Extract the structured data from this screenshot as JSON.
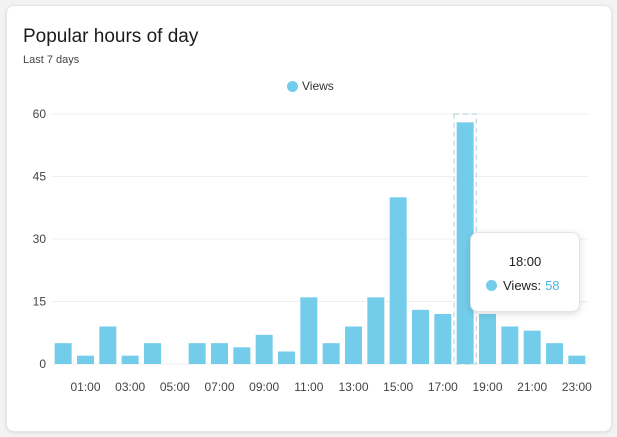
{
  "card": {
    "title": "Popular hours of day",
    "subtitle": "Last 7 days"
  },
  "tooltip": {
    "title": "18:00",
    "series_label": "Views:",
    "value": "58"
  },
  "chart_data": {
    "type": "bar",
    "categories": [
      "00:00",
      "01:00",
      "02:00",
      "03:00",
      "04:00",
      "05:00",
      "06:00",
      "07:00",
      "08:00",
      "09:00",
      "10:00",
      "11:00",
      "12:00",
      "13:00",
      "14:00",
      "15:00",
      "16:00",
      "17:00",
      "18:00",
      "19:00",
      "20:00",
      "21:00",
      "22:00",
      "23:00"
    ],
    "x_tick_labels": [
      "01:00",
      "03:00",
      "05:00",
      "07:00",
      "09:00",
      "11:00",
      "13:00",
      "15:00",
      "17:00",
      "19:00",
      "21:00",
      "23:00"
    ],
    "series": [
      {
        "name": "Views",
        "values": [
          5,
          2,
          9,
          2,
          5,
          0,
          5,
          5,
          4,
          7,
          3,
          16,
          5,
          9,
          16,
          40,
          13,
          12,
          58,
          12,
          9,
          8,
          5,
          2
        ]
      }
    ],
    "y_ticks": [
      0,
      15,
      30,
      45,
      60
    ],
    "ylim": [
      0,
      60
    ],
    "highlighted_category": "18:00",
    "grid": true,
    "legend": "top-center",
    "colors": {
      "bar": "#73cdea",
      "tooltip_value": "#4bb6dd"
    }
  }
}
